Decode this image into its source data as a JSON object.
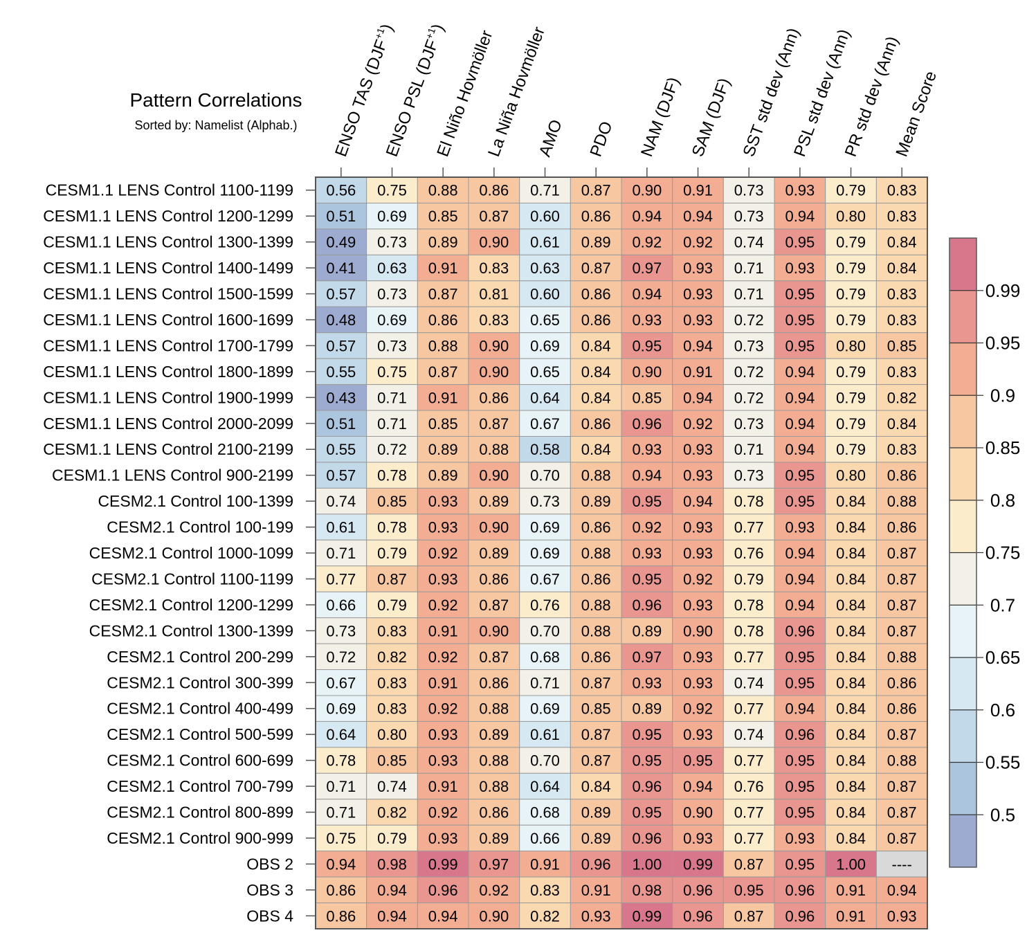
{
  "chart_data": {
    "type": "heatmap",
    "title": "Pattern Correlations",
    "subtitle": "Sorted by: Namelist (Alphab.)",
    "columns": [
      "ENSO TAS (DJF",
      "ENSO PSL (DJF",
      "El Niño Hovmöller",
      "La Niña Hovmöller",
      "AMO",
      "PDO",
      "NAM (DJF)",
      "SAM (DJF)",
      "SST std dev (Ann)",
      "PSL std dev (Ann)",
      "PR std dev (Ann)",
      "Mean Score"
    ],
    "column_superscripts": [
      "+1",
      "+1",
      "",
      "",
      "",
      "",
      "",
      "",
      "",
      "",
      "",
      ""
    ],
    "column_suffixes": [
      ")",
      ")",
      "",
      "",
      "",
      "",
      "",
      "",
      "",
      "",
      "",
      ""
    ],
    "rows": [
      "CESM1.1 LENS Control 1100-1199",
      "CESM1.1 LENS Control 1200-1299",
      "CESM1.1 LENS Control 1300-1399",
      "CESM1.1 LENS Control 1400-1499",
      "CESM1.1 LENS Control 1500-1599",
      "CESM1.1 LENS Control 1600-1699",
      "CESM1.1 LENS Control 1700-1799",
      "CESM1.1 LENS Control 1800-1899",
      "CESM1.1 LENS Control 1900-1999",
      "CESM1.1 LENS Control 2000-2099",
      "CESM1.1 LENS Control 2100-2199",
      "CESM1.1 LENS Control 900-2199",
      "CESM2.1 Control 100-1399",
      "CESM2.1 Control 100-199",
      "CESM2.1 Control 1000-1099",
      "CESM2.1 Control 1100-1199",
      "CESM2.1 Control 1200-1299",
      "CESM2.1 Control 1300-1399",
      "CESM2.1 Control 200-299",
      "CESM2.1 Control 300-399",
      "CESM2.1 Control 400-499",
      "CESM2.1 Control 500-599",
      "CESM2.1 Control 600-699",
      "CESM2.1 Control 700-799",
      "CESM2.1 Control 800-899",
      "CESM2.1 Control 900-999",
      "OBS 2",
      "OBS 3",
      "OBS 4"
    ],
    "values": [
      [
        "0.56",
        "0.75",
        "0.88",
        "0.86",
        "0.71",
        "0.87",
        "0.90",
        "0.91",
        "0.73",
        "0.93",
        "0.79",
        "0.83"
      ],
      [
        "0.51",
        "0.69",
        "0.85",
        "0.87",
        "0.60",
        "0.86",
        "0.94",
        "0.94",
        "0.73",
        "0.94",
        "0.80",
        "0.83"
      ],
      [
        "0.49",
        "0.73",
        "0.89",
        "0.90",
        "0.61",
        "0.89",
        "0.92",
        "0.92",
        "0.74",
        "0.95",
        "0.79",
        "0.84"
      ],
      [
        "0.41",
        "0.63",
        "0.91",
        "0.83",
        "0.63",
        "0.87",
        "0.97",
        "0.93",
        "0.71",
        "0.93",
        "0.79",
        "0.84"
      ],
      [
        "0.57",
        "0.73",
        "0.87",
        "0.81",
        "0.60",
        "0.86",
        "0.94",
        "0.93",
        "0.71",
        "0.95",
        "0.79",
        "0.83"
      ],
      [
        "0.48",
        "0.69",
        "0.86",
        "0.83",
        "0.65",
        "0.86",
        "0.93",
        "0.93",
        "0.72",
        "0.95",
        "0.79",
        "0.83"
      ],
      [
        "0.57",
        "0.73",
        "0.88",
        "0.90",
        "0.69",
        "0.84",
        "0.95",
        "0.94",
        "0.73",
        "0.95",
        "0.80",
        "0.85"
      ],
      [
        "0.55",
        "0.75",
        "0.87",
        "0.90",
        "0.65",
        "0.84",
        "0.90",
        "0.91",
        "0.72",
        "0.94",
        "0.79",
        "0.83"
      ],
      [
        "0.43",
        "0.71",
        "0.91",
        "0.86",
        "0.64",
        "0.84",
        "0.85",
        "0.94",
        "0.72",
        "0.94",
        "0.79",
        "0.82"
      ],
      [
        "0.51",
        "0.71",
        "0.85",
        "0.87",
        "0.67",
        "0.86",
        "0.96",
        "0.92",
        "0.73",
        "0.94",
        "0.79",
        "0.84"
      ],
      [
        "0.55",
        "0.72",
        "0.89",
        "0.88",
        "0.58",
        "0.84",
        "0.93",
        "0.93",
        "0.71",
        "0.94",
        "0.79",
        "0.83"
      ],
      [
        "0.57",
        "0.78",
        "0.89",
        "0.90",
        "0.70",
        "0.88",
        "0.94",
        "0.93",
        "0.73",
        "0.95",
        "0.80",
        "0.86"
      ],
      [
        "0.74",
        "0.85",
        "0.93",
        "0.89",
        "0.73",
        "0.89",
        "0.95",
        "0.94",
        "0.78",
        "0.95",
        "0.84",
        "0.88"
      ],
      [
        "0.61",
        "0.78",
        "0.93",
        "0.90",
        "0.69",
        "0.86",
        "0.92",
        "0.93",
        "0.77",
        "0.93",
        "0.84",
        "0.86"
      ],
      [
        "0.71",
        "0.79",
        "0.92",
        "0.89",
        "0.69",
        "0.88",
        "0.93",
        "0.93",
        "0.76",
        "0.94",
        "0.84",
        "0.87"
      ],
      [
        "0.77",
        "0.87",
        "0.93",
        "0.86",
        "0.67",
        "0.86",
        "0.95",
        "0.92",
        "0.79",
        "0.94",
        "0.84",
        "0.87"
      ],
      [
        "0.66",
        "0.79",
        "0.92",
        "0.87",
        "0.76",
        "0.88",
        "0.96",
        "0.93",
        "0.78",
        "0.94",
        "0.84",
        "0.87"
      ],
      [
        "0.73",
        "0.83",
        "0.91",
        "0.90",
        "0.70",
        "0.88",
        "0.89",
        "0.90",
        "0.78",
        "0.96",
        "0.84",
        "0.87"
      ],
      [
        "0.72",
        "0.82",
        "0.92",
        "0.87",
        "0.68",
        "0.86",
        "0.97",
        "0.93",
        "0.77",
        "0.95",
        "0.84",
        "0.88"
      ],
      [
        "0.67",
        "0.83",
        "0.91",
        "0.86",
        "0.71",
        "0.87",
        "0.93",
        "0.93",
        "0.74",
        "0.95",
        "0.84",
        "0.86"
      ],
      [
        "0.69",
        "0.83",
        "0.92",
        "0.88",
        "0.69",
        "0.85",
        "0.89",
        "0.92",
        "0.77",
        "0.94",
        "0.84",
        "0.86"
      ],
      [
        "0.64",
        "0.80",
        "0.93",
        "0.89",
        "0.61",
        "0.87",
        "0.95",
        "0.93",
        "0.74",
        "0.96",
        "0.84",
        "0.87"
      ],
      [
        "0.78",
        "0.85",
        "0.93",
        "0.88",
        "0.70",
        "0.87",
        "0.95",
        "0.95",
        "0.77",
        "0.95",
        "0.84",
        "0.88"
      ],
      [
        "0.71",
        "0.74",
        "0.91",
        "0.88",
        "0.64",
        "0.84",
        "0.96",
        "0.94",
        "0.76",
        "0.95",
        "0.84",
        "0.87"
      ],
      [
        "0.71",
        "0.82",
        "0.92",
        "0.86",
        "0.68",
        "0.89",
        "0.95",
        "0.90",
        "0.77",
        "0.95",
        "0.84",
        "0.87"
      ],
      [
        "0.75",
        "0.79",
        "0.93",
        "0.89",
        "0.66",
        "0.89",
        "0.96",
        "0.93",
        "0.77",
        "0.93",
        "0.84",
        "0.87"
      ],
      [
        "0.94",
        "0.98",
        "0.99",
        "0.97",
        "0.91",
        "0.96",
        "1.00",
        "0.99",
        "0.87",
        "0.95",
        "1.00",
        "----"
      ],
      [
        "0.86",
        "0.94",
        "0.96",
        "0.92",
        "0.83",
        "0.91",
        "0.98",
        "0.96",
        "0.95",
        "0.96",
        "0.91",
        "0.94"
      ],
      [
        "0.86",
        "0.94",
        "0.94",
        "0.90",
        "0.82",
        "0.93",
        "0.99",
        "0.96",
        "0.87",
        "0.96",
        "0.91",
        "0.93"
      ]
    ],
    "missing_marker": "----",
    "colorbar": {
      "levels": [
        0.5,
        0.55,
        0.6,
        0.65,
        0.7,
        0.75,
        0.8,
        0.85,
        0.9,
        0.95,
        0.99
      ],
      "labels": [
        "0.5",
        "0.55",
        "0.6",
        "0.65",
        "0.7",
        "0.75",
        "0.8",
        "0.85",
        "0.9",
        "0.95",
        "0.99"
      ],
      "colors": [
        "#9eabd1",
        "#acc5de",
        "#c2d9e9",
        "#d6e8f1",
        "#e8f3f7",
        "#f3f1e7",
        "#fbedcc",
        "#fad9b0",
        "#f7c7a2",
        "#f2ad93",
        "#e99691",
        "#d8778c"
      ],
      "missing_color": "#d9d9d9"
    }
  }
}
